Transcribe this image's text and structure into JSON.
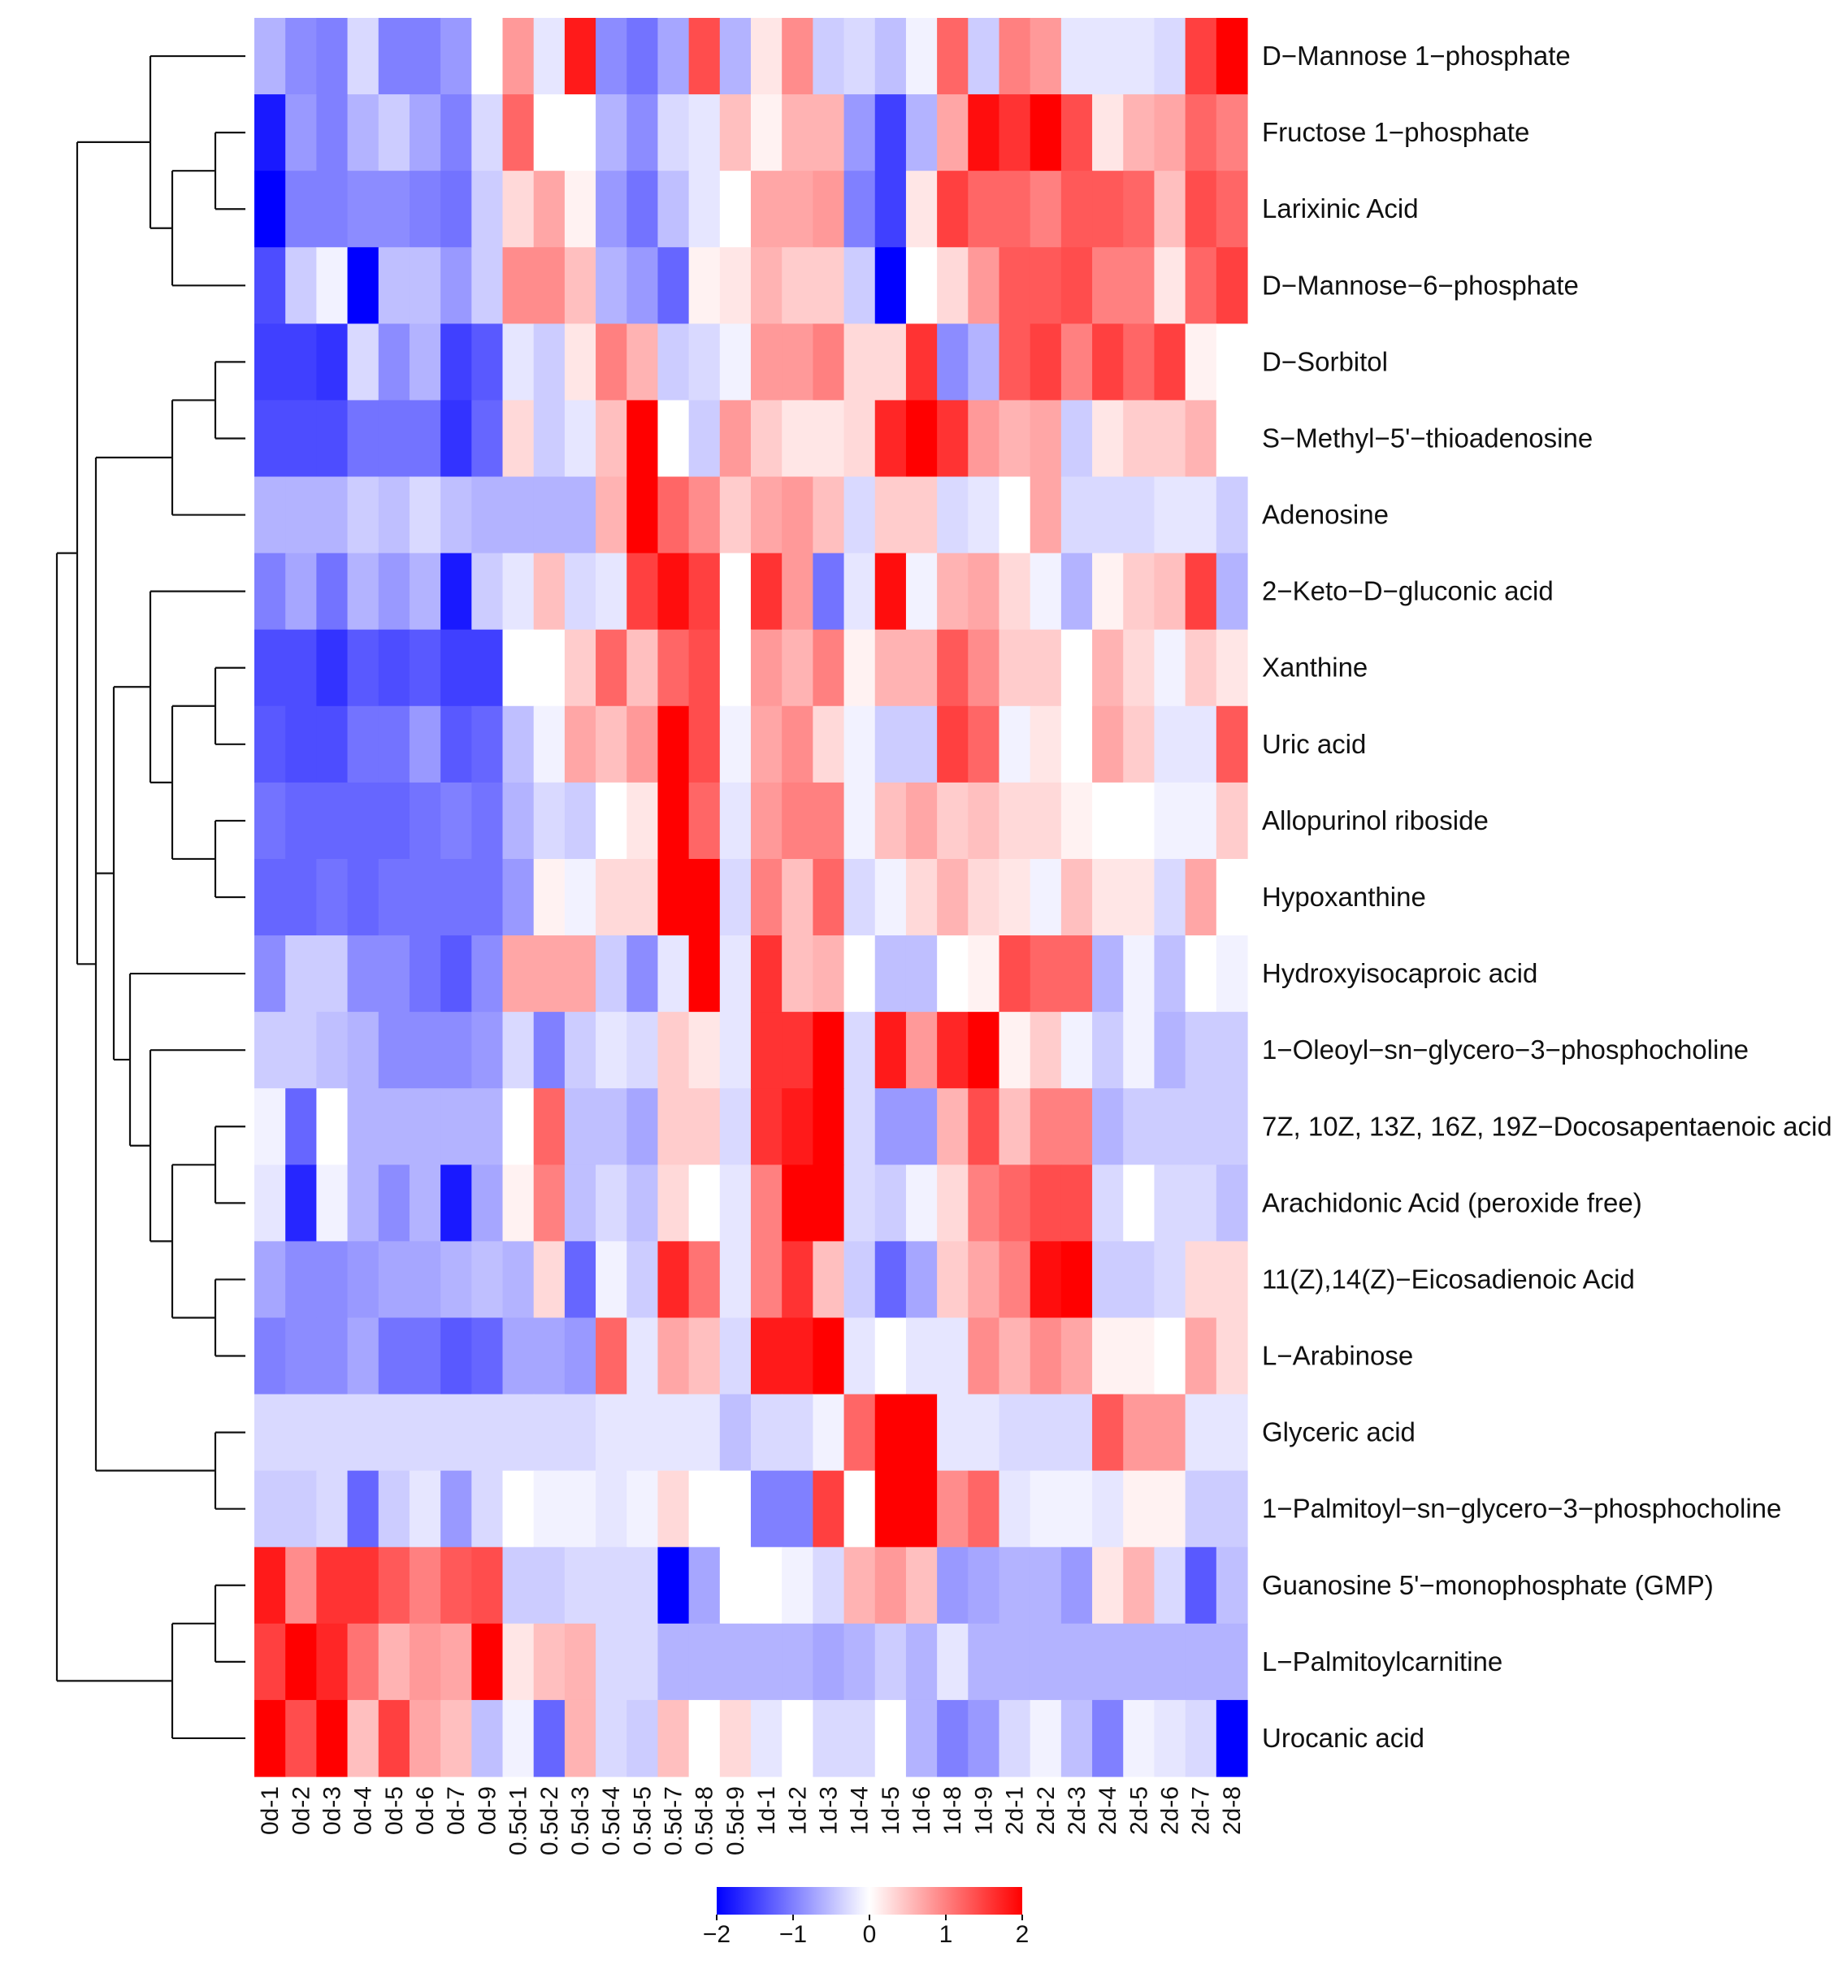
{
  "chart_data": {
    "type": "heatmap",
    "title": "",
    "xlabel": "",
    "ylabel": "",
    "columns": [
      "0d-1",
      "0d-2",
      "0d-3",
      "0d-4",
      "0d-5",
      "0d-6",
      "0d-7",
      "0d-9",
      "0.5d-1",
      "0.5d-2",
      "0.5d-3",
      "0.5d-4",
      "0.5d-5",
      "0.5d-7",
      "0.5d-8",
      "0.5d-9",
      "1d-1",
      "1d-2",
      "1d-3",
      "1d-4",
      "1d-5",
      "1d-6",
      "1d-8",
      "1d-9",
      "2d-1",
      "2d-2",
      "2d-3",
      "2d-4",
      "2d-5",
      "2d-6",
      "2d-7",
      "2d-8"
    ],
    "rows": [
      "D−Mannose 1−phosphate",
      "Fructose 1−phosphate",
      "Larixinic Acid",
      "D−Mannose−6−phosphate",
      "D−Sorbitol",
      "S−Methyl−5'−thioadenosine",
      "Adenosine",
      "2−Keto−D−gluconic acid",
      "Xanthine",
      "Uric acid",
      "Allopurinol riboside",
      "Hypoxanthine",
      "Hydroxyisocaproic acid",
      "1−Oleoyl−sn−glycero−3−phosphocholine",
      "7Z, 10Z, 13Z, 16Z, 19Z−Docosapentaenoic acid",
      "Arachidonic Acid (peroxide free)",
      "11(Z),14(Z)−Eicosadienoic Acid",
      "L−Arabinose",
      "Glyceric acid",
      "1−Palmitoyl−sn−glycero−3−phosphocholine",
      "Guanosine 5'−monophosphate (GMP)",
      "L−Palmitoylcarnitine",
      "Urocanic acid"
    ],
    "values": [
      [
        -0.6,
        -0.9,
        -1.0,
        -0.3,
        -1.0,
        -1.0,
        -0.8,
        0.0,
        0.8,
        -0.2,
        1.8,
        -0.9,
        -1.1,
        -0.7,
        1.4,
        -0.6,
        0.2,
        0.9,
        -0.4,
        -0.3,
        -0.5,
        -0.1,
        1.2,
        -0.4,
        1.0,
        0.8,
        -0.2,
        -0.2,
        -0.2,
        -0.3,
        1.5,
        2.0
      ],
      [
        -1.8,
        -0.8,
        -1.0,
        -0.6,
        -0.4,
        -0.7,
        -1.0,
        -0.3,
        1.2,
        0.0,
        0.0,
        -0.6,
        -0.9,
        -0.3,
        -0.2,
        0.5,
        0.1,
        0.6,
        0.6,
        -0.8,
        -1.5,
        -0.6,
        0.7,
        1.9,
        1.6,
        2.0,
        1.4,
        0.2,
        0.6,
        0.7,
        1.2,
        1.0
      ],
      [
        -2.0,
        -1.0,
        -1.0,
        -0.9,
        -0.9,
        -1.0,
        -1.1,
        -0.4,
        0.3,
        0.7,
        0.1,
        -0.8,
        -1.1,
        -0.5,
        -0.2,
        0.0,
        0.7,
        0.7,
        0.8,
        -1.0,
        -1.5,
        0.2,
        1.5,
        1.2,
        1.2,
        1.0,
        1.3,
        1.3,
        1.2,
        0.5,
        1.4,
        1.2
      ],
      [
        -1.4,
        -0.4,
        -0.1,
        -2.0,
        -0.5,
        -0.5,
        -0.8,
        -0.4,
        0.9,
        0.9,
        0.5,
        -0.6,
        -0.8,
        -1.2,
        0.1,
        0.2,
        0.6,
        0.4,
        0.4,
        -0.4,
        -2.0,
        0.0,
        0.3,
        0.8,
        1.3,
        1.3,
        1.4,
        1.0,
        1.0,
        0.2,
        1.2,
        1.5
      ],
      [
        -1.5,
        -1.5,
        -1.6,
        -0.3,
        -0.9,
        -0.6,
        -1.5,
        -1.3,
        -0.2,
        -0.4,
        0.2,
        1.0,
        0.6,
        -0.4,
        -0.3,
        -0.1,
        0.8,
        0.8,
        1.0,
        0.3,
        0.3,
        1.6,
        -0.9,
        -0.6,
        1.3,
        1.5,
        1.0,
        1.5,
        1.2,
        1.5,
        0.1,
        0.0
      ],
      [
        -1.4,
        -1.4,
        -1.4,
        -1.1,
        -1.1,
        -1.1,
        -1.6,
        -1.2,
        0.3,
        -0.4,
        -0.2,
        0.5,
        2.0,
        0.0,
        -0.4,
        0.8,
        0.4,
        0.2,
        0.2,
        0.3,
        1.7,
        2.0,
        1.6,
        0.8,
        0.6,
        0.7,
        -0.4,
        0.2,
        0.4,
        0.4,
        0.6,
        0.0
      ],
      [
        -0.6,
        -0.6,
        -0.6,
        -0.4,
        -0.5,
        -0.3,
        -0.5,
        -0.6,
        -0.6,
        -0.6,
        -0.6,
        0.6,
        2.0,
        1.2,
        0.9,
        0.4,
        0.7,
        0.8,
        0.5,
        -0.3,
        0.4,
        0.4,
        -0.3,
        -0.2,
        0.0,
        0.7,
        -0.3,
        -0.3,
        -0.3,
        -0.2,
        -0.2,
        -0.4
      ],
      [
        -1.0,
        -0.7,
        -1.1,
        -0.6,
        -0.8,
        -0.6,
        -1.8,
        -0.4,
        -0.2,
        0.5,
        -0.3,
        -0.2,
        1.5,
        1.9,
        1.5,
        0.0,
        1.6,
        0.8,
        -1.1,
        -0.2,
        1.9,
        -0.1,
        0.6,
        0.7,
        0.3,
        -0.1,
        -0.6,
        0.1,
        0.4,
        0.5,
        1.5,
        -0.6
      ],
      [
        -1.4,
        -1.4,
        -1.6,
        -1.3,
        -1.4,
        -1.3,
        -1.5,
        -1.5,
        0.0,
        0.0,
        0.4,
        1.2,
        0.5,
        1.2,
        1.4,
        0.0,
        0.8,
        0.6,
        1.0,
        0.1,
        0.6,
        0.6,
        1.3,
        0.9,
        0.4,
        0.4,
        0.0,
        0.6,
        0.3,
        -0.1,
        0.4,
        0.2
      ],
      [
        -1.3,
        -1.4,
        -1.4,
        -1.1,
        -1.1,
        -0.8,
        -1.3,
        -1.2,
        -0.5,
        -0.1,
        0.7,
        0.5,
        0.8,
        2.0,
        1.4,
        -0.1,
        0.7,
        0.9,
        0.3,
        -0.1,
        -0.4,
        -0.4,
        1.5,
        1.2,
        -0.1,
        0.2,
        0.0,
        0.7,
        0.4,
        -0.2,
        -0.2,
        1.3
      ],
      [
        -1.1,
        -1.2,
        -1.2,
        -1.2,
        -1.2,
        -1.1,
        -1.0,
        -1.1,
        -0.6,
        -0.3,
        -0.4,
        0.0,
        0.2,
        2.0,
        1.2,
        -0.2,
        0.8,
        1.0,
        1.0,
        -0.1,
        0.5,
        0.7,
        0.4,
        0.5,
        0.3,
        0.3,
        0.1,
        0.0,
        0.0,
        -0.1,
        -0.1,
        0.4
      ],
      [
        -1.2,
        -1.2,
        -1.1,
        -1.2,
        -1.1,
        -1.1,
        -1.1,
        -1.1,
        -0.8,
        0.1,
        -0.1,
        0.3,
        0.3,
        2.0,
        2.0,
        -0.3,
        1.0,
        0.5,
        1.2,
        -0.3,
        -0.1,
        0.3,
        0.6,
        0.3,
        0.2,
        -0.1,
        0.5,
        0.2,
        0.2,
        -0.3,
        0.7,
        0.0
      ],
      [
        -0.9,
        -0.4,
        -0.4,
        -0.9,
        -0.9,
        -1.1,
        -1.3,
        -0.9,
        0.7,
        0.7,
        0.7,
        -0.4,
        -0.9,
        -0.2,
        2.0,
        -0.2,
        1.6,
        0.5,
        0.6,
        0.0,
        -0.5,
        -0.5,
        0.0,
        0.1,
        1.4,
        1.2,
        1.2,
        -0.6,
        -0.1,
        -0.5,
        0.0,
        -0.1
      ],
      [
        -0.4,
        -0.4,
        -0.5,
        -0.6,
        -0.9,
        -0.9,
        -0.9,
        -0.8,
        -0.3,
        -1.0,
        -0.4,
        -0.2,
        -0.3,
        0.4,
        0.2,
        -0.2,
        1.6,
        1.6,
        2.0,
        -0.3,
        1.8,
        0.8,
        1.7,
        2.0,
        0.1,
        0.4,
        -0.1,
        -0.4,
        -0.1,
        -0.6,
        -0.4,
        -0.4
      ],
      [
        -0.1,
        -1.2,
        0.0,
        -0.6,
        -0.6,
        -0.6,
        -0.6,
        -0.6,
        0.0,
        1.2,
        -0.5,
        -0.5,
        -0.7,
        0.4,
        0.4,
        -0.3,
        1.6,
        1.8,
        2.0,
        -0.3,
        -0.8,
        -0.8,
        0.6,
        1.4,
        0.5,
        1.0,
        1.0,
        -0.6,
        -0.4,
        -0.4,
        -0.4,
        -0.4
      ],
      [
        -0.2,
        -1.7,
        -0.1,
        -0.6,
        -0.9,
        -0.6,
        -1.8,
        -0.7,
        0.1,
        1.0,
        -0.5,
        -0.3,
        -0.5,
        0.3,
        0.0,
        -0.2,
        1.0,
        2.0,
        2.0,
        -0.3,
        -0.4,
        -0.1,
        0.3,
        1.0,
        1.2,
        1.4,
        1.4,
        -0.3,
        0.0,
        -0.3,
        -0.3,
        -0.5
      ],
      [
        -0.7,
        -0.9,
        -0.9,
        -0.8,
        -0.7,
        -0.7,
        -0.6,
        -0.5,
        -0.6,
        0.3,
        -1.2,
        -0.1,
        -0.4,
        1.7,
        1.1,
        -0.2,
        1.0,
        1.6,
        0.5,
        -0.4,
        -1.2,
        -0.7,
        0.4,
        0.7,
        1.0,
        1.9,
        2.0,
        -0.4,
        -0.4,
        -0.3,
        0.3,
        0.3
      ],
      [
        -1.0,
        -0.9,
        -0.9,
        -0.7,
        -1.1,
        -1.1,
        -1.3,
        -1.2,
        -0.7,
        -0.7,
        -0.8,
        1.2,
        -0.2,
        0.7,
        0.5,
        -0.3,
        1.8,
        1.8,
        2.0,
        -0.2,
        0.0,
        -0.2,
        -0.2,
        0.9,
        0.6,
        0.9,
        0.7,
        0.1,
        0.1,
        0.0,
        0.7,
        0.3
      ],
      [
        -0.3,
        -0.3,
        -0.3,
        -0.3,
        -0.3,
        -0.3,
        -0.3,
        -0.3,
        -0.3,
        -0.3,
        -0.3,
        -0.2,
        -0.2,
        -0.2,
        -0.2,
        -0.5,
        -0.3,
        -0.3,
        -0.1,
        1.2,
        2.0,
        2.0,
        -0.2,
        -0.2,
        -0.3,
        -0.3,
        -0.3,
        1.3,
        0.8,
        0.8,
        -0.2,
        -0.2
      ],
      [
        -0.4,
        -0.4,
        -0.3,
        -1.2,
        -0.4,
        -0.2,
        -0.8,
        -0.3,
        0.0,
        -0.1,
        -0.1,
        -0.2,
        -0.1,
        0.3,
        0.0,
        0.0,
        -1.0,
        -1.0,
        1.5,
        0.0,
        2.0,
        2.0,
        0.9,
        1.2,
        -0.2,
        -0.1,
        -0.1,
        -0.2,
        0.1,
        0.1,
        -0.4,
        -0.4
      ],
      [
        1.8,
        0.9,
        1.6,
        1.6,
        1.3,
        1.0,
        1.3,
        1.4,
        -0.4,
        -0.4,
        -0.3,
        -0.3,
        -0.3,
        -2.0,
        -0.7,
        0.0,
        0.0,
        -0.1,
        -0.3,
        0.6,
        0.8,
        0.5,
        -0.8,
        -0.7,
        -0.6,
        -0.6,
        -0.8,
        0.2,
        0.6,
        -0.3,
        -1.3,
        -0.5
      ],
      [
        1.5,
        2.0,
        1.7,
        1.1,
        0.6,
        0.8,
        0.7,
        2.0,
        0.2,
        0.5,
        0.6,
        -0.3,
        -0.3,
        -0.6,
        -0.6,
        -0.6,
        -0.6,
        -0.6,
        -0.7,
        -0.6,
        -0.4,
        -0.6,
        -0.2,
        -0.6,
        -0.6,
        -0.6,
        -0.6,
        -0.6,
        -0.6,
        -0.6,
        -0.6,
        -0.6
      ],
      [
        2.0,
        1.4,
        2.0,
        0.5,
        1.5,
        0.7,
        0.5,
        -0.5,
        -0.1,
        -1.2,
        0.6,
        -0.3,
        -0.4,
        0.5,
        0.0,
        0.3,
        -0.2,
        0.0,
        -0.3,
        -0.3,
        0.0,
        -0.6,
        -1.0,
        -0.8,
        -0.3,
        -0.1,
        -0.5,
        -1.0,
        -0.1,
        -0.2,
        -0.3,
        -2.0
      ]
    ],
    "color_scale": {
      "min": -2,
      "max": 2,
      "low_color": "#0000ff",
      "mid_color": "#ffffff",
      "high_color": "#ff0000",
      "ticks": [
        "−2",
        "−1",
        "0",
        "1",
        "2"
      ],
      "tick_values": [
        -2,
        -1,
        0,
        1,
        2
      ]
    },
    "row_dendrogram": "(((D−Mannose 1−phosphate,((Fructose 1−phosphate,Larixinic Acid),D−Mannose−6−phosphate)),(((D−Sorbitol,S−Methyl−5'−thioadenosine),Adenosine),((2−Keto−D−gluconic acid,((Xanthine,Uric acid),(Allopurinol riboside,Hypoxanthine))),(Hydroxyisocaproic acid,(1−Oleoyl−sn−glycero−3−phosphocholine,((7Z Docosapentaenoic acid,Arachidonic Acid),(11(Z),14(Z)−Eicosadienoic Acid,L−Arabinose))))),(Glyceric acid,1−Palmitoyl−sn−glycero−3−phosphocholine))),((GMP,L−Palmitoylcarnitine),Urocanic acid))",
    "legend_position": "bottom-center"
  }
}
